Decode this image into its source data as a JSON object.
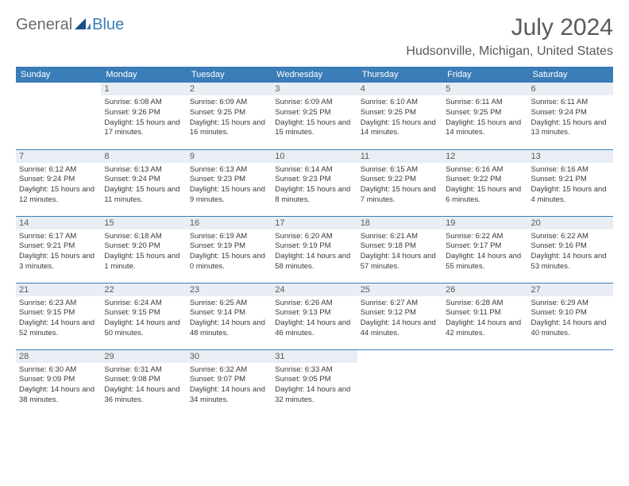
{
  "logo": {
    "text1": "General",
    "text2": "Blue"
  },
  "title": "July 2024",
  "location": "Hudsonville, Michigan, United States",
  "colors": {
    "header_bg": "#3b7db8",
    "daynum_bg": "#e8eef3",
    "rule": "#3b7db8"
  },
  "day_labels": [
    "Sunday",
    "Monday",
    "Tuesday",
    "Wednesday",
    "Thursday",
    "Friday",
    "Saturday"
  ],
  "weeks": [
    [
      null,
      {
        "n": "1",
        "sr": "Sunrise: 6:08 AM",
        "ss": "Sunset: 9:26 PM",
        "dl": "Daylight: 15 hours and 17 minutes."
      },
      {
        "n": "2",
        "sr": "Sunrise: 6:09 AM",
        "ss": "Sunset: 9:25 PM",
        "dl": "Daylight: 15 hours and 16 minutes."
      },
      {
        "n": "3",
        "sr": "Sunrise: 6:09 AM",
        "ss": "Sunset: 9:25 PM",
        "dl": "Daylight: 15 hours and 15 minutes."
      },
      {
        "n": "4",
        "sr": "Sunrise: 6:10 AM",
        "ss": "Sunset: 9:25 PM",
        "dl": "Daylight: 15 hours and 14 minutes."
      },
      {
        "n": "5",
        "sr": "Sunrise: 6:11 AM",
        "ss": "Sunset: 9:25 PM",
        "dl": "Daylight: 15 hours and 14 minutes."
      },
      {
        "n": "6",
        "sr": "Sunrise: 6:11 AM",
        "ss": "Sunset: 9:24 PM",
        "dl": "Daylight: 15 hours and 13 minutes."
      }
    ],
    [
      {
        "n": "7",
        "sr": "Sunrise: 6:12 AM",
        "ss": "Sunset: 9:24 PM",
        "dl": "Daylight: 15 hours and 12 minutes."
      },
      {
        "n": "8",
        "sr": "Sunrise: 6:13 AM",
        "ss": "Sunset: 9:24 PM",
        "dl": "Daylight: 15 hours and 11 minutes."
      },
      {
        "n": "9",
        "sr": "Sunrise: 6:13 AM",
        "ss": "Sunset: 9:23 PM",
        "dl": "Daylight: 15 hours and 9 minutes."
      },
      {
        "n": "10",
        "sr": "Sunrise: 6:14 AM",
        "ss": "Sunset: 9:23 PM",
        "dl": "Daylight: 15 hours and 8 minutes."
      },
      {
        "n": "11",
        "sr": "Sunrise: 6:15 AM",
        "ss": "Sunset: 9:22 PM",
        "dl": "Daylight: 15 hours and 7 minutes."
      },
      {
        "n": "12",
        "sr": "Sunrise: 6:16 AM",
        "ss": "Sunset: 9:22 PM",
        "dl": "Daylight: 15 hours and 6 minutes."
      },
      {
        "n": "13",
        "sr": "Sunrise: 6:16 AM",
        "ss": "Sunset: 9:21 PM",
        "dl": "Daylight: 15 hours and 4 minutes."
      }
    ],
    [
      {
        "n": "14",
        "sr": "Sunrise: 6:17 AM",
        "ss": "Sunset: 9:21 PM",
        "dl": "Daylight: 15 hours and 3 minutes."
      },
      {
        "n": "15",
        "sr": "Sunrise: 6:18 AM",
        "ss": "Sunset: 9:20 PM",
        "dl": "Daylight: 15 hours and 1 minute."
      },
      {
        "n": "16",
        "sr": "Sunrise: 6:19 AM",
        "ss": "Sunset: 9:19 PM",
        "dl": "Daylight: 15 hours and 0 minutes."
      },
      {
        "n": "17",
        "sr": "Sunrise: 6:20 AM",
        "ss": "Sunset: 9:19 PM",
        "dl": "Daylight: 14 hours and 58 minutes."
      },
      {
        "n": "18",
        "sr": "Sunrise: 6:21 AM",
        "ss": "Sunset: 9:18 PM",
        "dl": "Daylight: 14 hours and 57 minutes."
      },
      {
        "n": "19",
        "sr": "Sunrise: 6:22 AM",
        "ss": "Sunset: 9:17 PM",
        "dl": "Daylight: 14 hours and 55 minutes."
      },
      {
        "n": "20",
        "sr": "Sunrise: 6:22 AM",
        "ss": "Sunset: 9:16 PM",
        "dl": "Daylight: 14 hours and 53 minutes."
      }
    ],
    [
      {
        "n": "21",
        "sr": "Sunrise: 6:23 AM",
        "ss": "Sunset: 9:15 PM",
        "dl": "Daylight: 14 hours and 52 minutes."
      },
      {
        "n": "22",
        "sr": "Sunrise: 6:24 AM",
        "ss": "Sunset: 9:15 PM",
        "dl": "Daylight: 14 hours and 50 minutes."
      },
      {
        "n": "23",
        "sr": "Sunrise: 6:25 AM",
        "ss": "Sunset: 9:14 PM",
        "dl": "Daylight: 14 hours and 48 minutes."
      },
      {
        "n": "24",
        "sr": "Sunrise: 6:26 AM",
        "ss": "Sunset: 9:13 PM",
        "dl": "Daylight: 14 hours and 46 minutes."
      },
      {
        "n": "25",
        "sr": "Sunrise: 6:27 AM",
        "ss": "Sunset: 9:12 PM",
        "dl": "Daylight: 14 hours and 44 minutes."
      },
      {
        "n": "26",
        "sr": "Sunrise: 6:28 AM",
        "ss": "Sunset: 9:11 PM",
        "dl": "Daylight: 14 hours and 42 minutes."
      },
      {
        "n": "27",
        "sr": "Sunrise: 6:29 AM",
        "ss": "Sunset: 9:10 PM",
        "dl": "Daylight: 14 hours and 40 minutes."
      }
    ],
    [
      {
        "n": "28",
        "sr": "Sunrise: 6:30 AM",
        "ss": "Sunset: 9:09 PM",
        "dl": "Daylight: 14 hours and 38 minutes."
      },
      {
        "n": "29",
        "sr": "Sunrise: 6:31 AM",
        "ss": "Sunset: 9:08 PM",
        "dl": "Daylight: 14 hours and 36 minutes."
      },
      {
        "n": "30",
        "sr": "Sunrise: 6:32 AM",
        "ss": "Sunset: 9:07 PM",
        "dl": "Daylight: 14 hours and 34 minutes."
      },
      {
        "n": "31",
        "sr": "Sunrise: 6:33 AM",
        "ss": "Sunset: 9:05 PM",
        "dl": "Daylight: 14 hours and 32 minutes."
      },
      null,
      null,
      null
    ]
  ]
}
